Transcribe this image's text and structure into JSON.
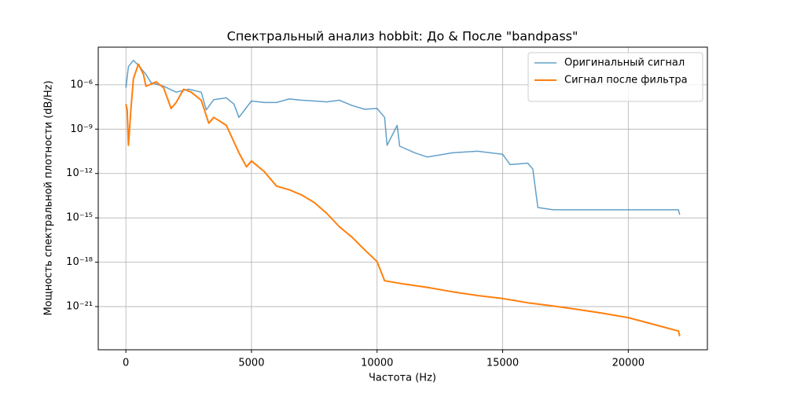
{
  "chart_data": {
    "type": "line",
    "title": "Спектральный анализ hobbit: До & После \"bandpass\"",
    "x_label": "Частота (Hz)",
    "y_label": "Мощность спектральной плотности (dB/Hz)",
    "log_y": true,
    "grid": true,
    "legend": "upper right",
    "xlim": [
      -1100,
      23150
    ],
    "ylim": [
      1.2e-24,
      0.00035
    ],
    "xticks": [
      0,
      5000,
      10000,
      15000,
      20000
    ],
    "yticks": [
      {
        "value": 1e-21,
        "label": "10⁻²¹"
      },
      {
        "value": 1e-18,
        "label": "10⁻¹⁸"
      },
      {
        "value": 1e-15,
        "label": "10⁻¹⁵"
      },
      {
        "value": 1e-12,
        "label": "10⁻¹²"
      },
      {
        "value": 1e-09,
        "label": "10⁻⁹"
      },
      {
        "value": 1e-06,
        "label": "10⁻⁶"
      }
    ],
    "series": [
      {
        "name": "Оригинальный сигнал",
        "color": "#1f77b4",
        "x": [
          0,
          100,
          300,
          500,
          800,
          1000,
          1500,
          2000,
          2500,
          3000,
          3200,
          3500,
          4000,
          4300,
          4500,
          5000,
          5500,
          6000,
          6500,
          7000,
          7500,
          8000,
          8500,
          9000,
          9500,
          10000,
          10300,
          10400,
          10800,
          10900,
          11500,
          12000,
          12500,
          13000,
          14000,
          15000,
          15300,
          16000,
          16200,
          16400,
          17000,
          18000,
          19000,
          20000,
          21000,
          22000,
          22050
        ],
        "values": [
          6.3e-07,
          1.7e-05,
          4.5e-05,
          2.1e-05,
          5e-06,
          1.4e-06,
          8e-07,
          3.2e-07,
          5e-07,
          3.2e-07,
          2e-08,
          1e-07,
          1.3e-07,
          5e-08,
          6.3e-09,
          8e-08,
          6.3e-08,
          6.3e-08,
          1.1e-07,
          9e-08,
          8e-08,
          7e-08,
          9e-08,
          4e-08,
          2.2e-08,
          2.5e-08,
          6.3e-09,
          8e-11,
          1.8e-09,
          7e-11,
          2.5e-11,
          1.3e-11,
          1.8e-11,
          2.5e-11,
          3.2e-11,
          2e-11,
          4e-12,
          5e-12,
          2e-12,
          5e-15,
          3.5e-15,
          3.5e-15,
          3.5e-15,
          3.5e-15,
          3.5e-15,
          3.5e-15,
          1.6e-15
        ]
      },
      {
        "name": "Сигнал после фильтра",
        "color": "#ff7f0e",
        "x": [
          0,
          50,
          100,
          200,
          300,
          500,
          700,
          800,
          1000,
          1200,
          1500,
          1800,
          2000,
          2300,
          2600,
          3000,
          3300,
          3500,
          4000,
          4500,
          4800,
          5000,
          5500,
          6000,
          6500,
          7000,
          7500,
          8000,
          8500,
          9000,
          9500,
          10000,
          10300,
          11000,
          12000,
          13000,
          14000,
          15000,
          16000,
          17000,
          18000,
          19000,
          20000,
          21000,
          22000,
          22050
        ],
        "values": [
          5e-08,
          2e-08,
          8e-11,
          2e-08,
          2.5e-06,
          2.5e-05,
          5e-06,
          8e-07,
          1.1e-06,
          1.6e-06,
          6.3e-07,
          2.5e-08,
          6.3e-08,
          5e-07,
          3.2e-07,
          9e-08,
          2.5e-09,
          6.3e-09,
          1.8e-09,
          2.5e-11,
          2.8e-12,
          7e-12,
          1.4e-12,
          1.4e-13,
          8e-14,
          3.5e-14,
          1.1e-14,
          2e-15,
          2.5e-16,
          5e-17,
          7e-18,
          1.1e-18,
          5.6e-20,
          3.5e-20,
          2e-20,
          1e-20,
          5.6e-21,
          3.5e-21,
          1.8e-21,
          1.1e-21,
          6.3e-22,
          3.5e-22,
          1.8e-22,
          6.3e-23,
          2.2e-23,
          1e-23
        ]
      }
    ]
  }
}
